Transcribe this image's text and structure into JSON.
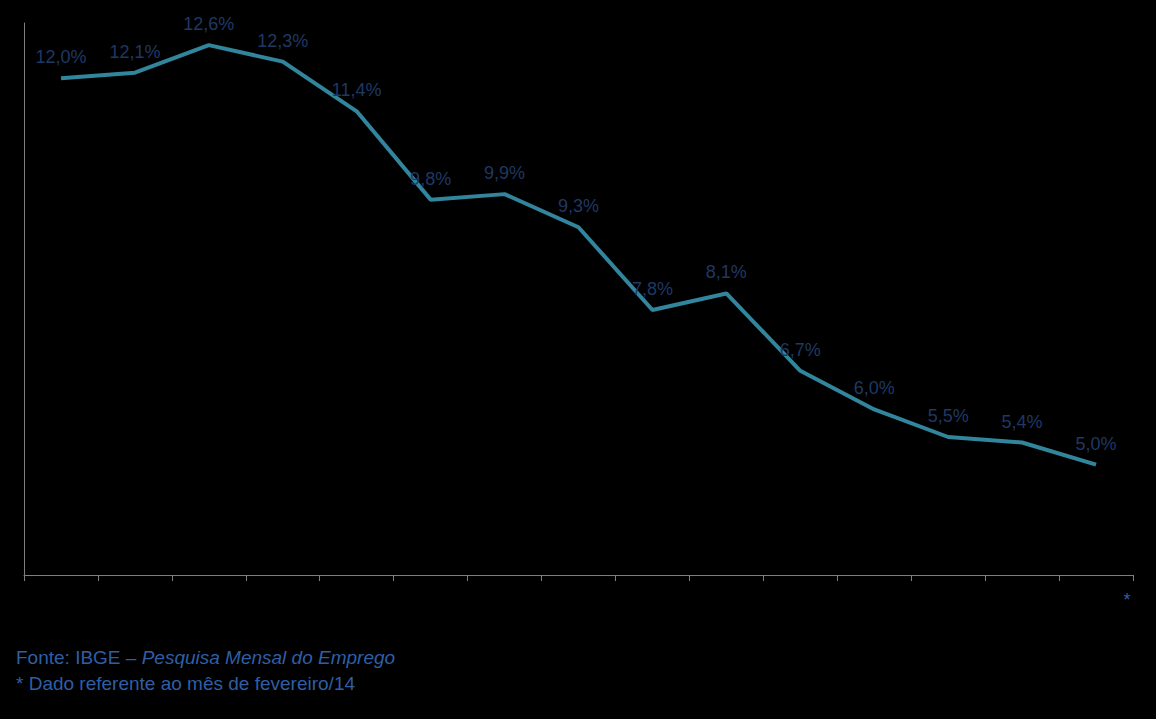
{
  "chart_data": {
    "type": "line",
    "categories": [
      null,
      null,
      null,
      null,
      null,
      null,
      null,
      null,
      null,
      null,
      null,
      null,
      null,
      null,
      "*"
    ],
    "values": [
      12.0,
      12.1,
      12.6,
      12.3,
      11.4,
      9.8,
      9.9,
      9.3,
      7.8,
      8.1,
      6.7,
      6.0,
      5.5,
      5.4,
      5.0
    ],
    "value_labels": [
      "12,0%",
      "12,1%",
      "12,6%",
      "12,3%",
      "11,4%",
      "9,8%",
      "9,9%",
      "9,3%",
      "7,8%",
      "8,1%",
      "6,7%",
      "6,0%",
      "5,5%",
      "5,4%",
      "5,0%"
    ],
    "color": "#31859c",
    "ylim": [
      3,
      13
    ],
    "yticks": [
      3,
      13
    ],
    "grid": false,
    "data_labels": true,
    "tick_labels": "x",
    "marker": "none",
    "annotations": [
      [
        "Fonte: IBGE – ",
        "Pesquisa Mensal do Emprego"
      ],
      [
        "* Dado referente ao mês de fevereiro/14"
      ]
    ]
  }
}
